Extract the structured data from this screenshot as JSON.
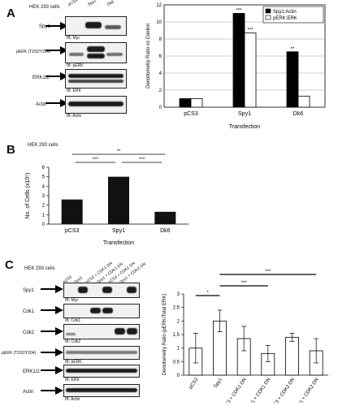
{
  "panelA": {
    "letter": "A",
    "cell_line": "HEK 293 cells",
    "lanes": [
      "pCS3",
      "Spy1",
      "Dk6"
    ],
    "blots": [
      {
        "label": "Spy1",
        "ib": "IB: Myc"
      },
      {
        "label": "pERK (T202/Y204)",
        "ib": "IB: pERK"
      },
      {
        "label": "ERK1/2",
        "ib": "IB: ERK"
      },
      {
        "label": "Actin",
        "ib": "IB: Actin"
      }
    ]
  },
  "panelB": {
    "letter": "B",
    "cell_line": "HEK 293 cells"
  },
  "panelC": {
    "letter": "C",
    "cell_line": "HEK 293 cells",
    "lanes": [
      "pCS3",
      "Spy1",
      "pCS3 + CDK1 DN",
      "Spy1 + CDK1 DN",
      "pCS3 + CDK2 DN",
      "Spy1 + CDK2 DN"
    ],
    "blots": [
      {
        "label": "Spy1",
        "ib": "IB: Myc"
      },
      {
        "label": "Cdk1",
        "ib": "IB: Cdk1"
      },
      {
        "label": "Cdk2",
        "ib": "IB: Cdk2"
      },
      {
        "label": "pERK (T202/Y204)",
        "ib": "IB: pERK"
      },
      {
        "label": "ERK1/2",
        "ib": "IB: ERK"
      },
      {
        "label": "Actin",
        "ib": "IB: Actin"
      }
    ]
  },
  "chart_data": [
    {
      "type": "bar",
      "panel": "A",
      "categories": [
        "pCS3",
        "Spy1",
        "Dk6"
      ],
      "series": [
        {
          "name": "Spy1:Actin",
          "values": [
            1.0,
            11.0,
            6.5
          ],
          "color": "#000000"
        },
        {
          "name": "pERK:ERK",
          "values": [
            1.0,
            8.7,
            1.3
          ],
          "color": "#ffffff"
        }
      ],
      "significance": [
        [
          "",
          "***",
          "**"
        ],
        [
          "",
          "***",
          ""
        ]
      ],
      "ylabel": "Densitometry Ratio vs Control",
      "xlabel": "Transfection",
      "ylim": [
        0,
        12
      ],
      "yticks": [
        0,
        2,
        4,
        6,
        8,
        10,
        12
      ],
      "legend": "top-right"
    },
    {
      "type": "bar",
      "panel": "B",
      "categories": [
        "pCS3",
        "Spy1",
        "Dk6"
      ],
      "values": [
        2.6,
        5.0,
        1.3
      ],
      "ylabel": "No. of Cells (x10⁵)",
      "xlabel": "Transfection",
      "ylim": [
        0,
        6
      ],
      "yticks": [
        0,
        1,
        2,
        3,
        4,
        5,
        6
      ],
      "brackets": [
        {
          "from": 0,
          "to": 1,
          "label": "***"
        },
        {
          "from": 1,
          "to": 2,
          "label": "***"
        },
        {
          "from": 0,
          "to": 2,
          "label": "**"
        }
      ]
    },
    {
      "type": "bar",
      "panel": "C",
      "categories": [
        "pCS3",
        "Spy1",
        "pCS3 + CDK1 DN",
        "Spy1 + CDK1 DN",
        "pCS3 + CDK2 DN",
        "Spy1 + CDK2 DN"
      ],
      "values": [
        1.0,
        2.0,
        1.35,
        0.8,
        1.4,
        0.9
      ],
      "errors": [
        0.55,
        0.4,
        0.45,
        0.3,
        0.15,
        0.45
      ],
      "ylabel": "Densitometry Ratio (pERK/Total ERK)",
      "ylim": [
        0,
        3
      ],
      "yticks": [
        0,
        0.5,
        1,
        1.5,
        2,
        2.5,
        3
      ],
      "ytick_labels": [
        "0",
        "0.5",
        "1",
        "1.5",
        "2",
        "2.5",
        "3"
      ],
      "brackets": [
        {
          "from": 0,
          "to": 1,
          "label": "*"
        },
        {
          "from": 1,
          "to": 3,
          "label": "***"
        },
        {
          "from": 1,
          "to": 5,
          "label": "***"
        }
      ]
    }
  ]
}
